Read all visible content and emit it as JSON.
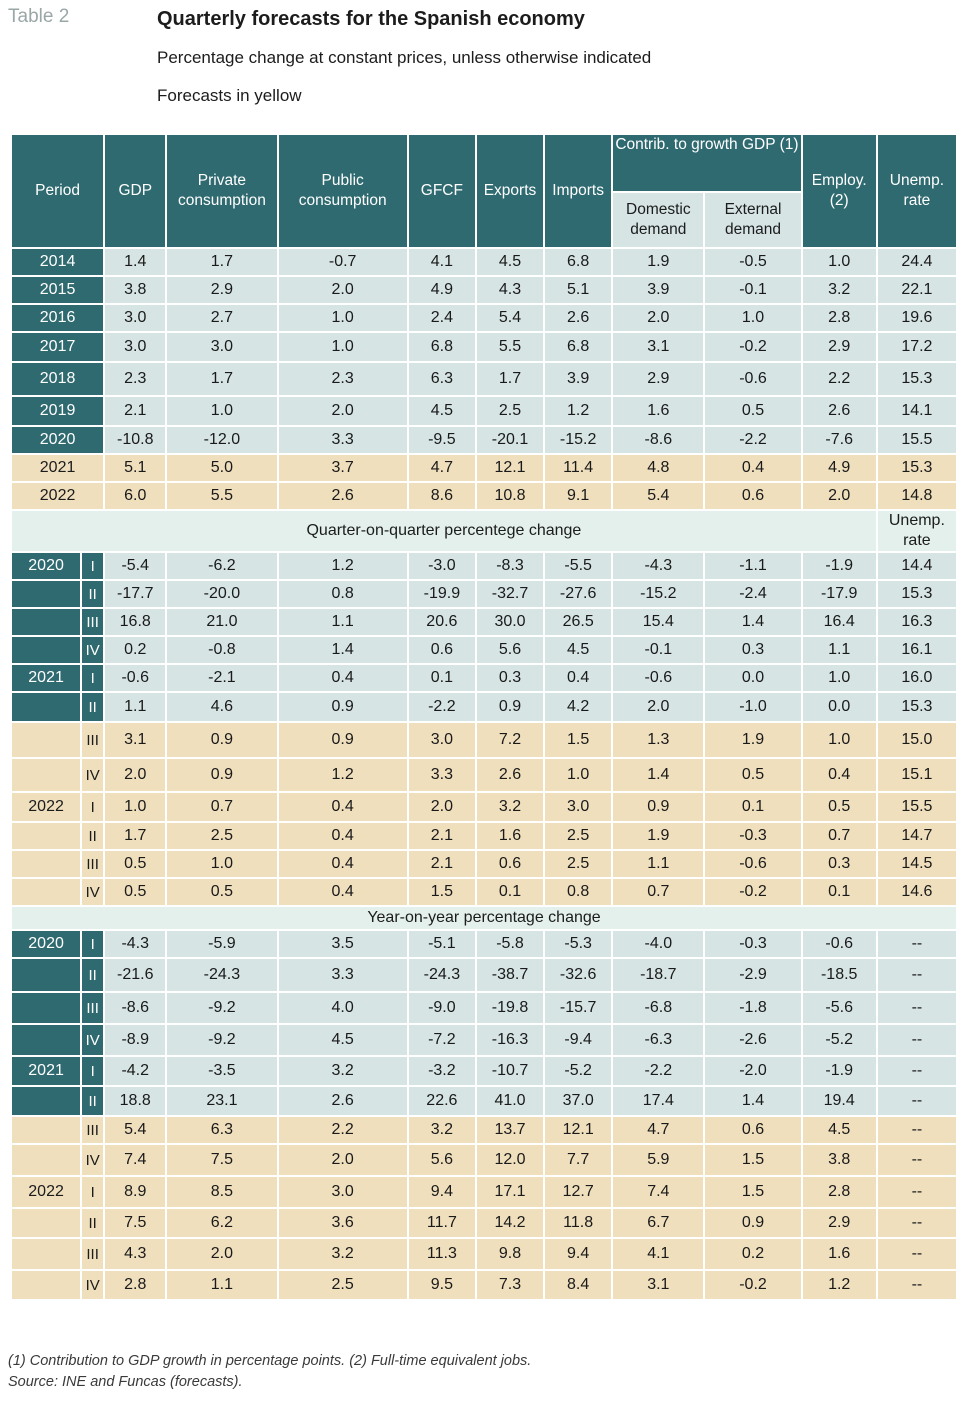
{
  "table_label": "Table 2",
  "title": "Quarterly forecasts for the Spanish economy",
  "subtitle": "Percentage change at constant prices, unless otherwise indicated",
  "subtitle2": "Forecasts in yellow",
  "headers": {
    "period": "Period",
    "gdp": "GDP",
    "private": "Private consumption",
    "public": "Public consumption",
    "gfcf": "GFCF",
    "exports": "Exports",
    "imports": "Imports",
    "contrib": "Contrib. to growth GDP (1)",
    "domestic": "Domestic demand",
    "external": "External demand",
    "employ": "Employ. (2)",
    "unemp": "Unemp. rate"
  },
  "section_qoq": "Quarter-on-quarter percentege change",
  "section_qoq_unemp": "Unemp. rate",
  "section_yoy": "Year-on-year percentage change",
  "annual": [
    {
      "period": "2014",
      "v": [
        "1.4",
        "1.7",
        "-0.7",
        "4.1",
        "4.5",
        "6.8",
        "1.9",
        "-0.5",
        "1.0",
        "24.4"
      ]
    },
    {
      "period": "2015",
      "v": [
        "3.8",
        "2.9",
        "2.0",
        "4.9",
        "4.3",
        "5.1",
        "3.9",
        "-0.1",
        "3.2",
        "22.1"
      ]
    },
    {
      "period": "2016",
      "v": [
        "3.0",
        "2.7",
        "1.0",
        "2.4",
        "5.4",
        "2.6",
        "2.0",
        "1.0",
        "2.8",
        "19.6"
      ]
    },
    {
      "period": "2017",
      "v": [
        "3.0",
        "3.0",
        "1.0",
        "6.8",
        "5.5",
        "6.8",
        "3.1",
        "-0.2",
        "2.9",
        "17.2"
      ]
    },
    {
      "period": "2018",
      "v": [
        "2.3",
        "1.7",
        "2.3",
        "6.3",
        "1.7",
        "3.9",
        "2.9",
        "-0.6",
        "2.2",
        "15.3"
      ]
    },
    {
      "period": "2019",
      "v": [
        "2.1",
        "1.0",
        "2.0",
        "4.5",
        "2.5",
        "1.2",
        "1.6",
        "0.5",
        "2.6",
        "14.1"
      ]
    },
    {
      "period": "2020",
      "v": [
        "-10.8",
        "-12.0",
        "3.3",
        "-9.5",
        "-20.1",
        "-15.2",
        "-8.6",
        "-2.2",
        "-7.6",
        "15.5"
      ]
    },
    {
      "period": "2021",
      "v": [
        "5.1",
        "5.0",
        "3.7",
        "4.7",
        "12.1",
        "11.4",
        "4.8",
        "0.4",
        "4.9",
        "15.3"
      ]
    },
    {
      "period": "2022",
      "v": [
        "6.0",
        "5.5",
        "2.6",
        "8.6",
        "10.8",
        "9.1",
        "5.4",
        "0.6",
        "2.0",
        "14.8"
      ]
    }
  ],
  "qoq": [
    {
      "year": "2020",
      "q": "I",
      "v": [
        "-5.4",
        "-6.2",
        "1.2",
        "-3.0",
        "-8.3",
        "-5.5",
        "-4.3",
        "-1.1",
        "-1.9",
        "14.4"
      ]
    },
    {
      "year": "",
      "q": "II",
      "v": [
        "-17.7",
        "-20.0",
        "0.8",
        "-19.9",
        "-32.7",
        "-27.6",
        "-15.2",
        "-2.4",
        "-17.9",
        "15.3"
      ]
    },
    {
      "year": "",
      "q": "III",
      "v": [
        "16.8",
        "21.0",
        "1.1",
        "20.6",
        "30.0",
        "26.5",
        "15.4",
        "1.4",
        "16.4",
        "16.3"
      ]
    },
    {
      "year": "",
      "q": "IV",
      "v": [
        "0.2",
        "-0.8",
        "1.4",
        "0.6",
        "5.6",
        "4.5",
        "-0.1",
        "0.3",
        "1.1",
        "16.1"
      ]
    },
    {
      "year": "2021",
      "q": "I",
      "v": [
        "-0.6",
        "-2.1",
        "0.4",
        "0.1",
        "0.3",
        "0.4",
        "-0.6",
        "0.0",
        "1.0",
        "16.0"
      ]
    },
    {
      "year": "",
      "q": "II",
      "v": [
        "1.1",
        "4.6",
        "0.9",
        "-2.2",
        "0.9",
        "4.2",
        "2.0",
        "-1.0",
        "0.0",
        "15.3"
      ]
    },
    {
      "year": "",
      "q": "III",
      "v": [
        "3.1",
        "0.9",
        "0.9",
        "3.0",
        "7.2",
        "1.5",
        "1.3",
        "1.9",
        "1.0",
        "15.0"
      ]
    },
    {
      "year": "",
      "q": "IV",
      "v": [
        "2.0",
        "0.9",
        "1.2",
        "3.3",
        "2.6",
        "1.0",
        "1.4",
        "0.5",
        "0.4",
        "15.1"
      ]
    },
    {
      "year": "2022",
      "q": "I",
      "v": [
        "1.0",
        "0.7",
        "0.4",
        "2.0",
        "3.2",
        "3.0",
        "0.9",
        "0.1",
        "0.5",
        "15.5"
      ]
    },
    {
      "year": "",
      "q": "II",
      "v": [
        "1.7",
        "2.5",
        "0.4",
        "2.1",
        "1.6",
        "2.5",
        "1.9",
        "-0.3",
        "0.7",
        "14.7"
      ]
    },
    {
      "year": "",
      "q": "III",
      "v": [
        "0.5",
        "1.0",
        "0.4",
        "2.1",
        "0.6",
        "2.5",
        "1.1",
        "-0.6",
        "0.3",
        "14.5"
      ]
    },
    {
      "year": "",
      "q": "IV",
      "v": [
        "0.5",
        "0.5",
        "0.4",
        "1.5",
        "0.1",
        "0.8",
        "0.7",
        "-0.2",
        "0.1",
        "14.6"
      ]
    }
  ],
  "yoy": [
    {
      "year": "2020",
      "q": "I",
      "v": [
        "-4.3",
        "-5.9",
        "3.5",
        "-5.1",
        "-5.8",
        "-5.3",
        "-4.0",
        "-0.3",
        "-0.6",
        "--"
      ]
    },
    {
      "year": "",
      "q": "II",
      "v": [
        "-21.6",
        "-24.3",
        "3.3",
        "-24.3",
        "-38.7",
        "-32.6",
        "-18.7",
        "-2.9",
        "-18.5",
        "--"
      ]
    },
    {
      "year": "",
      "q": "III",
      "v": [
        "-8.6",
        "-9.2",
        "4.0",
        "-9.0",
        "-19.8",
        "-15.7",
        "-6.8",
        "-1.8",
        "-5.6",
        "--"
      ]
    },
    {
      "year": "",
      "q": "IV",
      "v": [
        "-8.9",
        "-9.2",
        "4.5",
        "-7.2",
        "-16.3",
        "-9.4",
        "-6.3",
        "-2.6",
        "-5.2",
        "--"
      ]
    },
    {
      "year": "2021",
      "q": "I",
      "v": [
        "-4.2",
        "-3.5",
        "3.2",
        "-3.2",
        "-10.7",
        "-5.2",
        "-2.2",
        "-2.0",
        "-1.9",
        "--"
      ]
    },
    {
      "year": "",
      "q": "II",
      "v": [
        "18.8",
        "23.1",
        "2.6",
        "22.6",
        "41.0",
        "37.0",
        "17.4",
        "1.4",
        "19.4",
        "--"
      ]
    },
    {
      "year": "",
      "q": "III",
      "v": [
        "5.4",
        "6.3",
        "2.2",
        "3.2",
        "13.7",
        "12.1",
        "4.7",
        "0.6",
        "4.5",
        "--"
      ]
    },
    {
      "year": "",
      "q": "IV",
      "v": [
        "7.4",
        "7.5",
        "2.0",
        "5.6",
        "12.0",
        "7.7",
        "5.9",
        "1.5",
        "3.8",
        "--"
      ]
    },
    {
      "year": "2022",
      "q": "I",
      "v": [
        "8.9",
        "8.5",
        "3.0",
        "9.4",
        "17.1",
        "12.7",
        "7.4",
        "1.5",
        "2.8",
        "--"
      ]
    },
    {
      "year": "",
      "q": "II",
      "v": [
        "7.5",
        "6.2",
        "3.6",
        "11.7",
        "14.2",
        "11.8",
        "6.7",
        "0.9",
        "2.9",
        "--"
      ]
    },
    {
      "year": "",
      "q": "III",
      "v": [
        "4.3",
        "2.0",
        "3.2",
        "11.3",
        "9.8",
        "9.4",
        "4.1",
        "0.2",
        "1.6",
        "--"
      ]
    },
    {
      "year": "",
      "q": "IV",
      "v": [
        "2.8",
        "1.1",
        "2.5",
        "9.5",
        "7.3",
        "8.4",
        "3.1",
        "-0.2",
        "1.2",
        "--"
      ]
    }
  ],
  "footnote": "(1) Contribution to GDP growth in percentage points. (2) Full-time equivalent jobs.",
  "source": "Source:  INE and Funcas (forecasts).",
  "colors": {
    "header": "#2e6a70",
    "historical": "#d6e4e4",
    "forecast": "#efdfbd",
    "section": "#e3f0ec"
  }
}
